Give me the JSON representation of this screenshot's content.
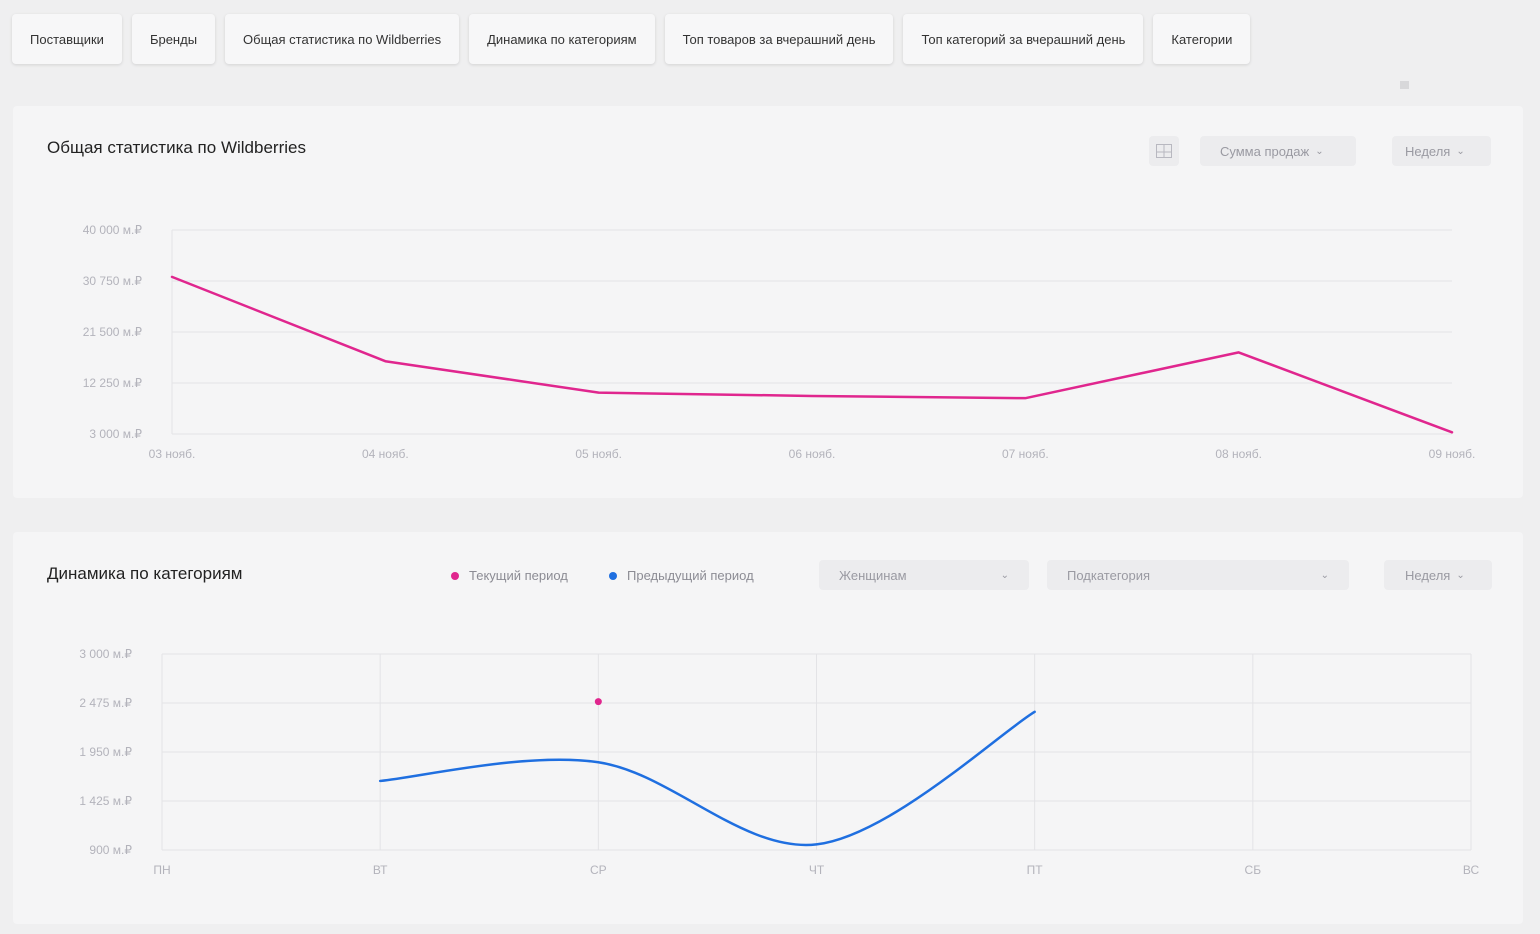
{
  "tabs": [
    {
      "label": "Поставщики"
    },
    {
      "label": "Бренды"
    },
    {
      "label": "Общая статистика по Wildberries"
    },
    {
      "label": "Динамика по категориям"
    },
    {
      "label": "Топ товаров за вчерашний день"
    },
    {
      "label": "Топ категорий за вчерашний день"
    },
    {
      "label": "Категории"
    }
  ],
  "colors": {
    "current": "#e0268e",
    "previous": "#1f6fe0"
  },
  "stats_card": {
    "title": "Общая статистика по Wildberries",
    "metric_select": "Сумма продаж",
    "period_select": "Неделя",
    "table_icon": "table-icon"
  },
  "dynamics_card": {
    "title": "Динамика по категориям",
    "legend_current": "Текущий период",
    "legend_previous": "Предыдущий период",
    "category_select": "Женщинам",
    "subcategory_select": "Подкатегория",
    "period_select": "Неделя"
  },
  "chart_data": [
    {
      "type": "line",
      "title": "Общая статистика по Wildberries",
      "categories": [
        "03 нояб.",
        "04 нояб.",
        "05 нояб.",
        "06 нояб.",
        "07 нояб.",
        "08 нояб.",
        "09 нояб."
      ],
      "series": [
        {
          "values": [
            31500,
            16200,
            10500,
            9900,
            9500,
            17800,
            3300
          ]
        }
      ],
      "y_ticks": [
        "3 000 м.₽",
        "12 250 м.₽",
        "21 500 м.₽",
        "30 750 м.₽",
        "40 000 м.₽"
      ],
      "ylim": [
        3000,
        40000
      ],
      "grid": true
    },
    {
      "type": "line",
      "title": "Динамика по категориям",
      "categories": [
        "ПН",
        "ВТ",
        "СР",
        "ЧТ",
        "ПТ",
        "СБ",
        "ВС"
      ],
      "series": [
        {
          "name": "Текущий период",
          "values": [
            null,
            null,
            2490,
            null,
            null,
            null,
            null
          ]
        },
        {
          "name": "Предыдущий период",
          "values": [
            null,
            1640,
            1840,
            960,
            2380,
            null,
            null
          ]
        }
      ],
      "y_ticks": [
        "900 м.₽",
        "1 425 м.₽",
        "1 950 м.₽",
        "2 475 м.₽",
        "3 000 м.₽"
      ],
      "ylim": [
        900,
        3000
      ],
      "grid": true,
      "legend": "top"
    }
  ]
}
